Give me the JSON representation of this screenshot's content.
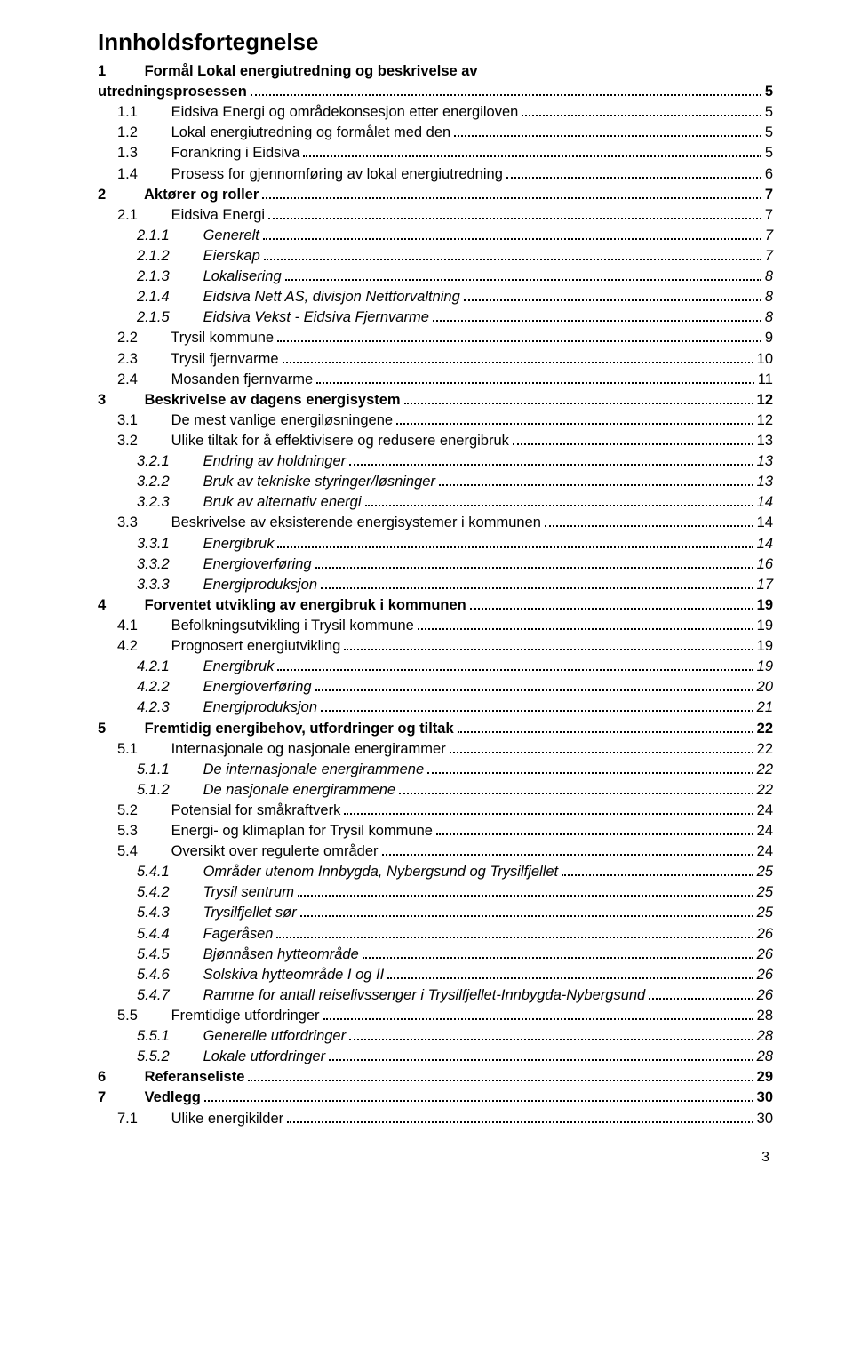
{
  "title": "Innholdsfortegnelse",
  "page_number_bottom": "3",
  "font_sizes": {
    "title_pt": 20,
    "body_pt": 12
  },
  "colors": {
    "text": "#000000",
    "background": "#ffffff",
    "leader": "#000000"
  },
  "entries": [
    {
      "level": 1,
      "num": "1",
      "text": "Formål Lokal energiutredning og beskrivelse av utredningsprosessen",
      "page": "5",
      "wrap": true
    },
    {
      "level": 2,
      "num": "1.1",
      "text": "Eidsiva Energi og områdekonsesjon etter energiloven",
      "page": "5"
    },
    {
      "level": 2,
      "num": "1.2",
      "text": "Lokal energiutredning og formålet med den",
      "page": "5"
    },
    {
      "level": 2,
      "num": "1.3",
      "text": "Forankring i Eidsiva",
      "page": "5"
    },
    {
      "level": 2,
      "num": "1.4",
      "text": "Prosess for gjennomføring av lokal energiutredning",
      "page": "6"
    },
    {
      "level": 1,
      "num": "2",
      "text": "Aktører og roller",
      "page": "7"
    },
    {
      "level": 2,
      "num": "2.1",
      "text": "Eidsiva Energi",
      "page": "7"
    },
    {
      "level": 3,
      "num": "2.1.1",
      "text": "Generelt",
      "page": "7"
    },
    {
      "level": 3,
      "num": "2.1.2",
      "text": "Eierskap",
      "page": "7"
    },
    {
      "level": 3,
      "num": "2.1.3",
      "text": "Lokalisering",
      "page": "8"
    },
    {
      "level": 3,
      "num": "2.1.4",
      "text": "Eidsiva Nett AS, divisjon Nettforvaltning",
      "page": "8"
    },
    {
      "level": 3,
      "num": "2.1.5",
      "text": "Eidsiva Vekst - Eidsiva Fjernvarme",
      "page": "8"
    },
    {
      "level": 2,
      "num": "2.2",
      "text": "Trysil kommune",
      "page": "9"
    },
    {
      "level": 2,
      "num": "2.3",
      "text": "Trysil fjernvarme",
      "page": "10"
    },
    {
      "level": 2,
      "num": "2.4",
      "text": "Mosanden fjernvarme",
      "page": "11"
    },
    {
      "level": 1,
      "num": "3",
      "text": "Beskrivelse av dagens energisystem",
      "page": "12"
    },
    {
      "level": 2,
      "num": "3.1",
      "text": "De mest vanlige energiløsningene",
      "page": "12"
    },
    {
      "level": 2,
      "num": "3.2",
      "text": "Ulike tiltak for å effektivisere og redusere energibruk",
      "page": "13"
    },
    {
      "level": 3,
      "num": "3.2.1",
      "text": "Endring av holdninger",
      "page": "13"
    },
    {
      "level": 3,
      "num": "3.2.2",
      "text": "Bruk av tekniske styringer/løsninger",
      "page": "13"
    },
    {
      "level": 3,
      "num": "3.2.3",
      "text": "Bruk av alternativ energi",
      "page": "14"
    },
    {
      "level": 2,
      "num": "3.3",
      "text": "Beskrivelse av eksisterende energisystemer i kommunen",
      "page": "14"
    },
    {
      "level": 3,
      "num": "3.3.1",
      "text": "Energibruk",
      "page": "14"
    },
    {
      "level": 3,
      "num": "3.3.2",
      "text": "Energioverføring",
      "page": "16"
    },
    {
      "level": 3,
      "num": "3.3.3",
      "text": "Energiproduksjon",
      "page": "17"
    },
    {
      "level": 1,
      "num": "4",
      "text": "Forventet utvikling av energibruk i kommunen",
      "page": "19"
    },
    {
      "level": 2,
      "num": "4.1",
      "text": "Befolkningsutvikling i Trysil kommune",
      "page": "19"
    },
    {
      "level": 2,
      "num": "4.2",
      "text": "Prognosert energiutvikling",
      "page": "19"
    },
    {
      "level": 3,
      "num": "4.2.1",
      "text": "Energibruk",
      "page": "19"
    },
    {
      "level": 3,
      "num": "4.2.2",
      "text": "Energioverføring",
      "page": "20"
    },
    {
      "level": 3,
      "num": "4.2.3",
      "text": "Energiproduksjon",
      "page": "21"
    },
    {
      "level": 1,
      "num": "5",
      "text": "Fremtidig energibehov, utfordringer og tiltak",
      "page": "22"
    },
    {
      "level": 2,
      "num": "5.1",
      "text": "Internasjonale og nasjonale energirammer",
      "page": "22"
    },
    {
      "level": 3,
      "num": "5.1.1",
      "text": "De internasjonale energirammene",
      "page": "22"
    },
    {
      "level": 3,
      "num": "5.1.2",
      "text": "De nasjonale energirammene",
      "page": "22"
    },
    {
      "level": 2,
      "num": "5.2",
      "text": "Potensial for småkraftverk",
      "page": "24"
    },
    {
      "level": 2,
      "num": "5.3",
      "text": "Energi- og klimaplan for Trysil kommune",
      "page": "24"
    },
    {
      "level": 2,
      "num": "5.4",
      "text": "Oversikt over regulerte områder",
      "page": "24"
    },
    {
      "level": 3,
      "num": "5.4.1",
      "text": "Områder utenom Innbygda, Nybergsund og Trysilfjellet",
      "page": "25"
    },
    {
      "level": 3,
      "num": "5.4.2",
      "text": "Trysil sentrum",
      "page": "25"
    },
    {
      "level": 3,
      "num": "5.4.3",
      "text": "Trysilfjellet sør",
      "page": "25"
    },
    {
      "level": 3,
      "num": "5.4.4",
      "text": "Fageråsen",
      "page": "26"
    },
    {
      "level": 3,
      "num": "5.4.5",
      "text": "Bjønnåsen hytteområde",
      "page": "26"
    },
    {
      "level": 3,
      "num": "5.4.6",
      "text": "Solskiva hytteområde I og II",
      "page": "26"
    },
    {
      "level": 3,
      "num": "5.4.7",
      "text": "Ramme for antall reiselivssenger i Trysilfjellet-Innbygda-Nybergsund",
      "page": "26"
    },
    {
      "level": 2,
      "num": "5.5",
      "text": "Fremtidige utfordringer",
      "page": "28"
    },
    {
      "level": 3,
      "num": "5.5.1",
      "text": "Generelle utfordringer",
      "page": "28"
    },
    {
      "level": 3,
      "num": "5.5.2",
      "text": "Lokale utfordringer",
      "page": "28"
    },
    {
      "level": 1,
      "num": "6",
      "text": "Referanseliste",
      "page": "29"
    },
    {
      "level": 1,
      "num": "7",
      "text": "Vedlegg",
      "page": "30"
    },
    {
      "level": 2,
      "num": "7.1",
      "text": "Ulike energikilder",
      "page": "30"
    }
  ]
}
